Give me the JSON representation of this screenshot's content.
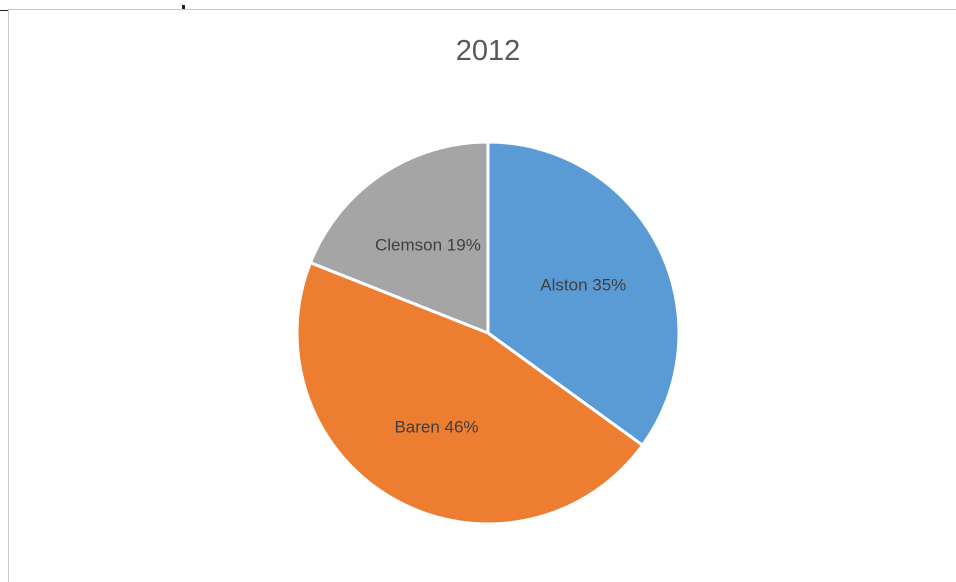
{
  "chart_data": {
    "type": "pie",
    "title": "2012",
    "categories": [
      "Alston",
      "Baren",
      "Clemson"
    ],
    "values": [
      35,
      46,
      19
    ],
    "labels": [
      "Alston 35%",
      "Baren 46%",
      "Clemson 19%"
    ],
    "colors": [
      "#5b9bd5",
      "#ed7d31",
      "#a5a5a5"
    ],
    "slice_border_color": "#ffffff",
    "legend": "none"
  }
}
